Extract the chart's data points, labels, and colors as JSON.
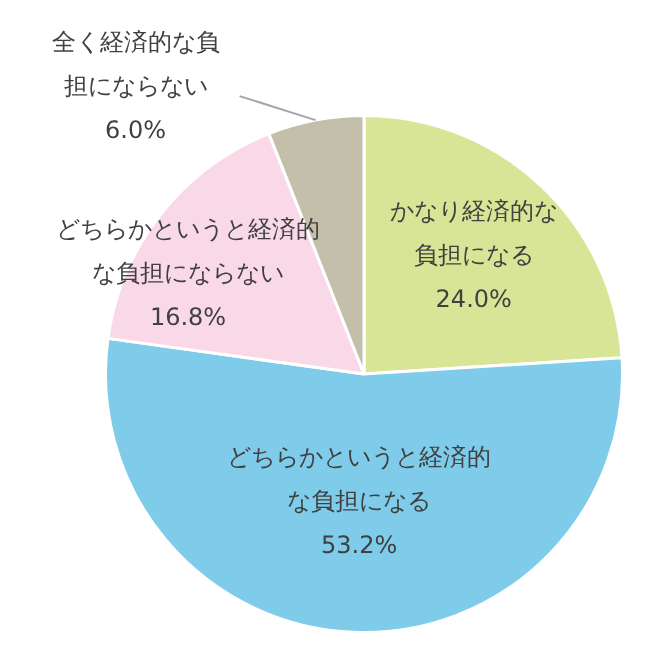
{
  "chart_data": {
    "type": "pie",
    "categories": [
      "かなり経済的な負担になる",
      "どちらかというと経済的な負担になる",
      "どちらかというと経済的な負担にならない",
      "全く経済的な負担にならない"
    ],
    "values": [
      24.0,
      53.2,
      16.8,
      6.0
    ],
    "colors": [
      "#d9e596",
      "#7ecbea",
      "#f9d9e8",
      "#c3bfab"
    ],
    "value_labels": [
      "24.0%",
      "53.2%",
      "16.8%",
      "6.0%"
    ],
    "legend": false
  }
}
